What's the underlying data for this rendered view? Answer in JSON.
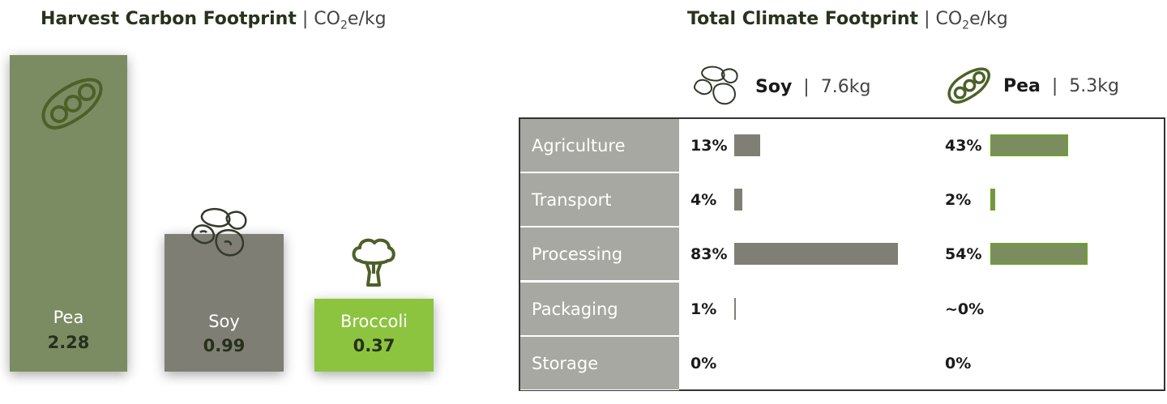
{
  "left_title": {
    "main": "Harvest Carbon Footprint",
    "sep": "|",
    "unit_pre": "CO",
    "unit_sub": "2",
    "unit_post": "e/kg"
  },
  "right_title": {
    "main": "Total Climate Footprint",
    "sep": "|",
    "unit_pre": "CO",
    "unit_sub": "2",
    "unit_post": "e/kg"
  },
  "colors": {
    "pea": "#7c8c62",
    "soy": "#7e7e74",
    "broccoli": "#8cc43f",
    "icon": "#4d6028"
  },
  "chart_data": [
    {
      "type": "bar",
      "categories": [
        "Pea",
        "Soy",
        "Broccoli"
      ],
      "values": [
        2.28,
        0.99,
        0.37
      ],
      "value_labels": [
        "2.28",
        "0.99",
        "0.37"
      ],
      "ylim": [
        0,
        2.28
      ]
    },
    {
      "type": "table",
      "rows": [
        "Agriculture",
        "Transport",
        "Processing",
        "Packaging",
        "Storage"
      ],
      "series": [
        {
          "name": "Soy",
          "total_label": "7.6kg",
          "values": [
            13,
            4,
            83,
            1,
            0
          ],
          "labels": [
            "13%",
            "4%",
            "83%",
            "1%",
            "0%"
          ]
        },
        {
          "name": "Pea",
          "total_label": "5.3kg",
          "values": [
            43,
            2,
            54,
            0,
            0
          ],
          "labels": [
            "43%",
            "2%",
            "54%",
            "~0%",
            "0%"
          ]
        }
      ]
    }
  ]
}
